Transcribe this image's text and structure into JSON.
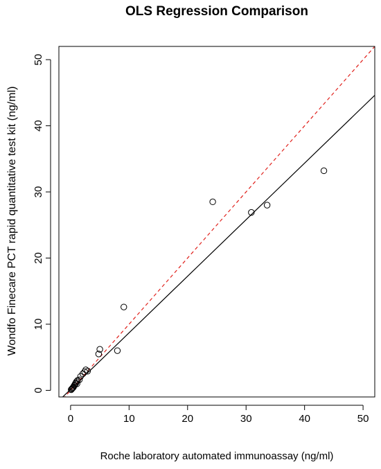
{
  "chart_data": {
    "type": "scatter",
    "title": "OLS Regression Comparison",
    "xlabel": "Roche laboratory automated immunoassay (ng/ml)",
    "ylabel": "Wondfo Finecare PCT rapid quantitative test kit (ng/ml)",
    "xlim": [
      -2,
      52
    ],
    "ylim": [
      -1,
      52
    ],
    "xticks": [
      0,
      10,
      20,
      30,
      40,
      50
    ],
    "yticks": [
      0,
      10,
      20,
      30,
      40,
      50
    ],
    "grid": false,
    "points": [
      {
        "x": 0.1,
        "y": 0.1
      },
      {
        "x": 0.2,
        "y": 0.2
      },
      {
        "x": 0.3,
        "y": 0.3
      },
      {
        "x": 0.4,
        "y": 0.4
      },
      {
        "x": 0.5,
        "y": 0.5
      },
      {
        "x": 0.6,
        "y": 0.7
      },
      {
        "x": 0.7,
        "y": 0.8
      },
      {
        "x": 0.8,
        "y": 1.0
      },
      {
        "x": 0.9,
        "y": 1.1
      },
      {
        "x": 1.0,
        "y": 1.3
      },
      {
        "x": 1.1,
        "y": 1.0
      },
      {
        "x": 1.2,
        "y": 1.5
      },
      {
        "x": 1.5,
        "y": 1.6
      },
      {
        "x": 1.7,
        "y": 2.1
      },
      {
        "x": 2.1,
        "y": 2.5
      },
      {
        "x": 2.4,
        "y": 2.8
      },
      {
        "x": 2.6,
        "y": 3.1
      },
      {
        "x": 2.9,
        "y": 2.9
      },
      {
        "x": 4.8,
        "y": 5.5
      },
      {
        "x": 5.0,
        "y": 6.2
      },
      {
        "x": 8.0,
        "y": 6.0
      },
      {
        "x": 9.1,
        "y": 12.6
      },
      {
        "x": 24.3,
        "y": 28.5
      },
      {
        "x": 30.9,
        "y": 26.9
      },
      {
        "x": 33.6,
        "y": 28.0
      },
      {
        "x": 43.3,
        "y": 33.2
      }
    ],
    "lines": [
      {
        "style": "solid",
        "color": "#000000",
        "intercept": 0.15,
        "slope": 0.855
      },
      {
        "style": "dashed",
        "color": "#e0201b",
        "intercept": 0.0,
        "slope": 1.0
      }
    ]
  }
}
